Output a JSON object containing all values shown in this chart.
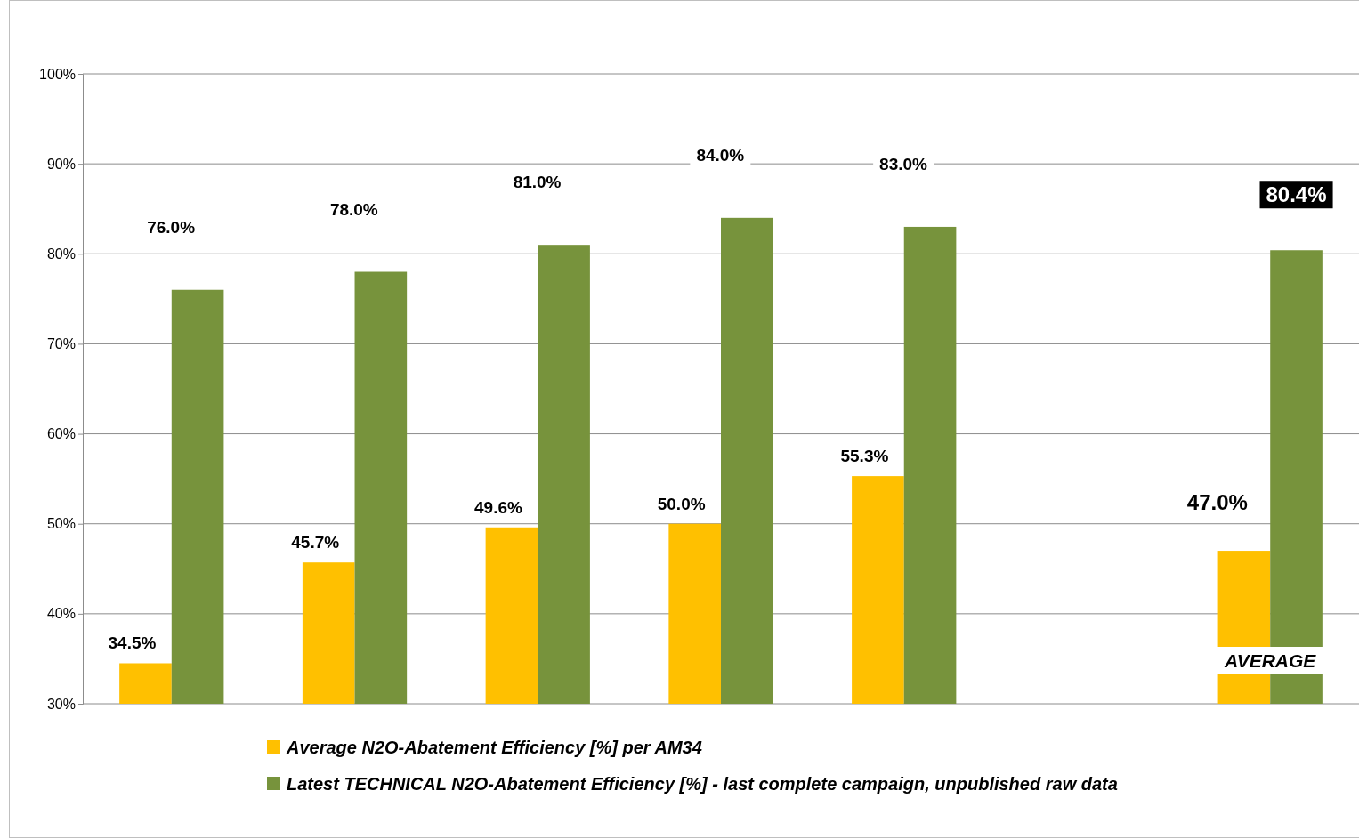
{
  "chart_data": {
    "type": "bar",
    "categories": [
      null,
      null,
      null,
      null,
      null,
      null,
      "AVERAGE"
    ],
    "series": [
      {
        "name": "Average N2O-Abatement Efficiency [%] per AM34",
        "color": "#ffc000",
        "values": [
          34.5,
          45.7,
          49.6,
          50.0,
          55.3,
          null,
          47.0
        ],
        "value_labels": [
          "34.5%",
          "45.7%",
          "49.6%",
          "50.0%",
          "55.3%",
          null,
          "47.0%"
        ]
      },
      {
        "name": "Latest TECHNICAL N2O-Abatement Efficiency [%] - last complete campaign, unpublished  raw data",
        "color": "#77933c",
        "values": [
          76.0,
          78.0,
          81.0,
          84.0,
          83.0,
          null,
          80.4
        ],
        "value_labels": [
          "76.0%",
          "78.0%",
          "81.0%",
          "84.0%",
          "83.0%",
          null,
          "80.4%"
        ]
      }
    ],
    "ylim": [
      30,
      100
    ],
    "yticks": [
      {
        "value": 30,
        "label": "30%"
      },
      {
        "value": 40,
        "label": "40%"
      },
      {
        "value": 50,
        "label": "50%"
      },
      {
        "value": 60,
        "label": "60%"
      },
      {
        "value": 70,
        "label": "70%"
      },
      {
        "value": 80,
        "label": "80%"
      },
      {
        "value": 90,
        "label": "90%"
      },
      {
        "value": 100,
        "label": "100%"
      }
    ],
    "grid": "y",
    "legend": "bottom"
  }
}
